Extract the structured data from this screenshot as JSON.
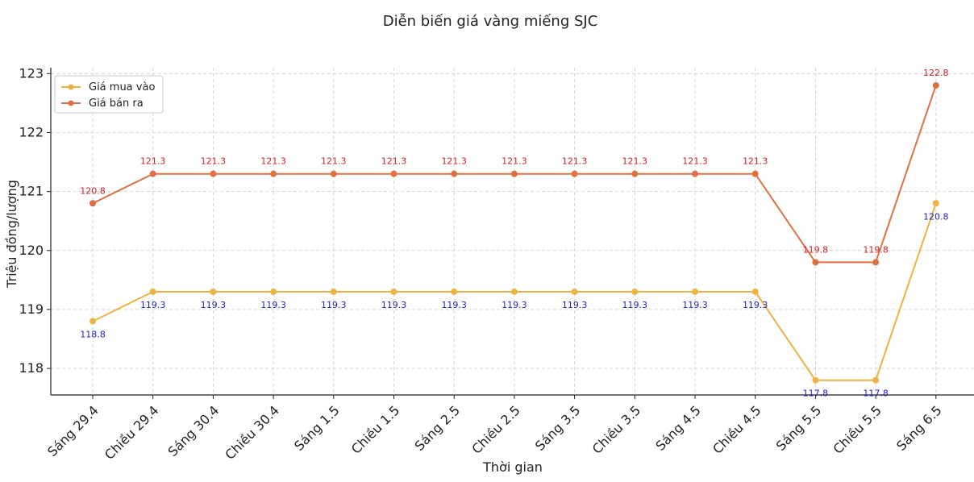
{
  "chart_data": {
    "type": "line",
    "title": "Diễn biến giá vàng miếng SJC",
    "xlabel": "Thời gian",
    "ylabel": "Triệu đồng/lượng",
    "categories": [
      "Sáng 29.4",
      "Chiều 29.4",
      "Sáng 30.4",
      "Chiều 30.4",
      "Sáng 1.5",
      "Chiều 1.5",
      "Sáng 2.5",
      "Chiều 2.5",
      "Sáng 3.5",
      "Chiều 3.5",
      "Sáng 4.5",
      "Chiều 4.5",
      "Sáng 5.5",
      "Chiều 5.5",
      "Sáng 6.5"
    ],
    "series": [
      {
        "name": "Giá mua vào",
        "color": "#F0B241",
        "label_color": "#1F1FCC",
        "values": [
          118.8,
          119.3,
          119.3,
          119.3,
          119.3,
          119.3,
          119.3,
          119.3,
          119.3,
          119.3,
          119.3,
          119.3,
          117.8,
          117.8,
          120.8
        ],
        "labels": [
          "118.8",
          "119.3",
          "119.3",
          "119.3",
          "119.3",
          "119.3",
          "119.3",
          "119.3",
          "119.3",
          "119.3",
          "119.3",
          "119.3",
          "117.8",
          "117.8",
          "120.8"
        ]
      },
      {
        "name": "Giá bán ra",
        "color": "#E07040",
        "label_color": "#D62020",
        "values": [
          120.8,
          121.3,
          121.3,
          121.3,
          121.3,
          121.3,
          121.3,
          121.3,
          121.3,
          121.3,
          121.3,
          121.3,
          119.8,
          119.8,
          122.8
        ],
        "labels": [
          "120.8",
          "121.3",
          "121.3",
          "121.3",
          "121.3",
          "121.3",
          "121.3",
          "121.3",
          "121.3",
          "121.3",
          "121.3",
          "121.3",
          "119.8",
          "119.8",
          "122.8"
        ]
      }
    ],
    "ylim": [
      117.55,
      123.1
    ],
    "yticks": [
      "118",
      "119",
      "120",
      "121",
      "122",
      "123"
    ],
    "grid": true,
    "legend_position": "top-left"
  }
}
